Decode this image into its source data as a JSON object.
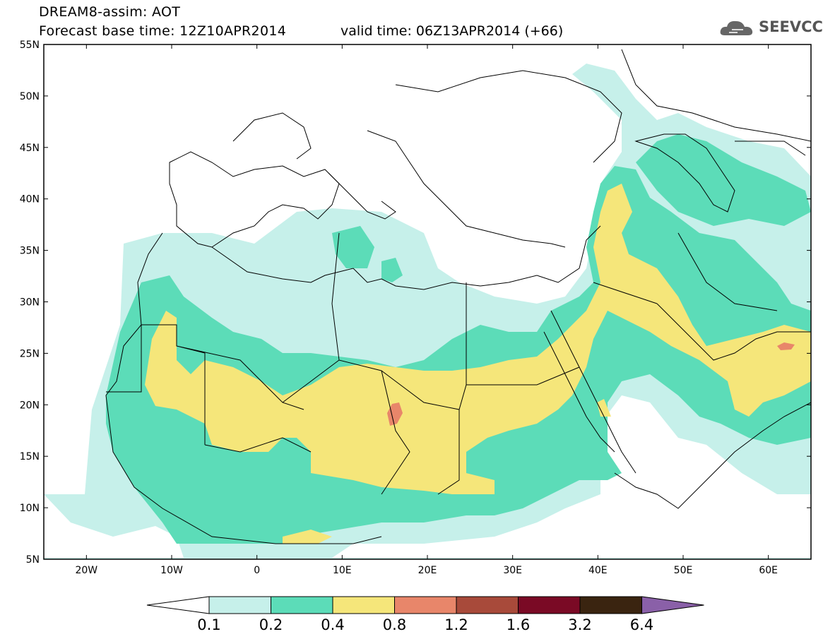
{
  "title": {
    "line1": "DREAM8-assim: AOT",
    "line2": "Forecast base time: 12Z10APR2014",
    "valid": "valid time: 06Z13APR2014 (+66)"
  },
  "logo": {
    "text": "SEEVCCC",
    "icon": "cloud-icon"
  },
  "map": {
    "lat_labels": [
      "55N",
      "50N",
      "45N",
      "40N",
      "35N",
      "30N",
      "25N",
      "20N",
      "15N",
      "10N",
      "5N"
    ],
    "lon_labels": [
      "20W",
      "10W",
      "0",
      "10E",
      "20E",
      "30E",
      "40E",
      "50E",
      "60E"
    ],
    "lat_range": [
      5,
      55
    ],
    "lon_range": [
      -25,
      65
    ]
  },
  "legend": {
    "ticks": [
      "0.1",
      "0.2",
      "0.4",
      "0.8",
      "1.2",
      "1.6",
      "3.2",
      "6.4"
    ],
    "colors": [
      "#ffffff",
      "#c6f0ea",
      "#5cdcb8",
      "#f5e67a",
      "#e8866a",
      "#a84a3a",
      "#7a0a25",
      "#3a2410",
      "#8a60a8"
    ]
  }
}
